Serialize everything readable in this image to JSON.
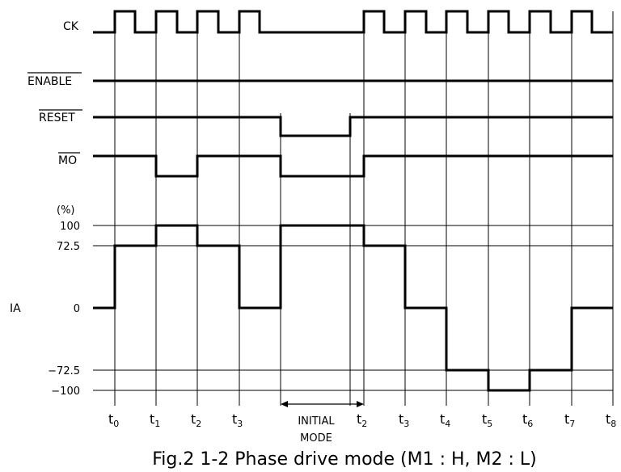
{
  "signals": {
    "ck": "CK",
    "enable": "ENABLE",
    "reset": "RESET",
    "mo": "MO",
    "ia": "IA",
    "unit": "(%)"
  },
  "ia_levels": [
    "100",
    "72.5",
    "0",
    "−72.5",
    "−100"
  ],
  "time_labels": [
    {
      "t": "t",
      "sub": "0"
    },
    {
      "t": "t",
      "sub": "1"
    },
    {
      "t": "t",
      "sub": "2"
    },
    {
      "t": "t",
      "sub": "3"
    },
    {
      "t": "t",
      "sub": "2"
    },
    {
      "t": "t",
      "sub": "3"
    },
    {
      "t": "t",
      "sub": "4"
    },
    {
      "t": "t",
      "sub": "5"
    },
    {
      "t": "t",
      "sub": "6"
    },
    {
      "t": "t",
      "sub": "7"
    },
    {
      "t": "t",
      "sub": "8"
    }
  ],
  "initial_mode": {
    "line1": "INITIAL",
    "line2": "MODE"
  },
  "caption": "Fig.2 1-2 Phase drive mode (M1 : H, M2 : L)"
}
